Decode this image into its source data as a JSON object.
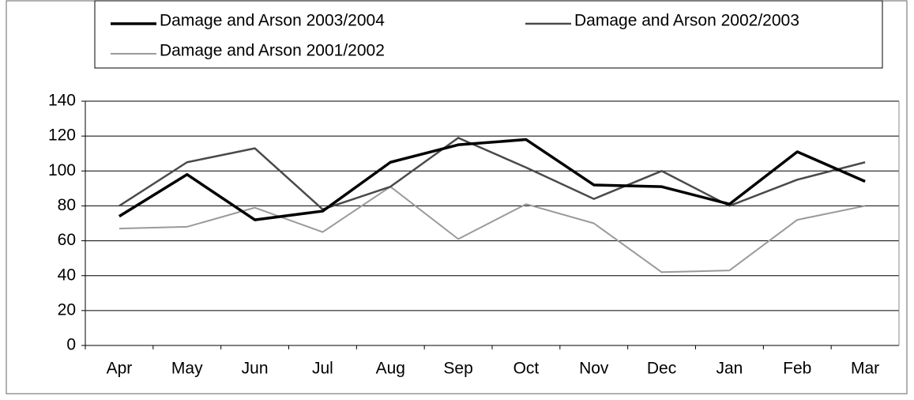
{
  "chart_data": {
    "type": "line",
    "categories": [
      "Apr",
      "May",
      "Jun",
      "Jul",
      "Aug",
      "Sep",
      "Oct",
      "Nov",
      "Dec",
      "Jan",
      "Feb",
      "Mar"
    ],
    "series": [
      {
        "name": "Damage and Arson 2003/2004",
        "color": "#000000",
        "values": [
          74,
          98,
          72,
          77,
          105,
          115,
          118,
          92,
          91,
          81,
          111,
          94
        ]
      },
      {
        "name": "Damage and Arson 2002/2003",
        "color": "#4a4a4a",
        "values": [
          80,
          105,
          113,
          78,
          91,
          119,
          102,
          84,
          100,
          80,
          95,
          105
        ]
      },
      {
        "name": "Damage and Arson 2001/2002",
        "color": "#9a9a9a",
        "values": [
          67,
          68,
          79,
          65,
          91,
          61,
          81,
          70,
          42,
          43,
          72,
          80
        ]
      }
    ],
    "ylim": [
      0,
      140
    ],
    "yticks": [
      0,
      20,
      40,
      60,
      80,
      100,
      120,
      140
    ],
    "grid": true,
    "legend": "top"
  }
}
